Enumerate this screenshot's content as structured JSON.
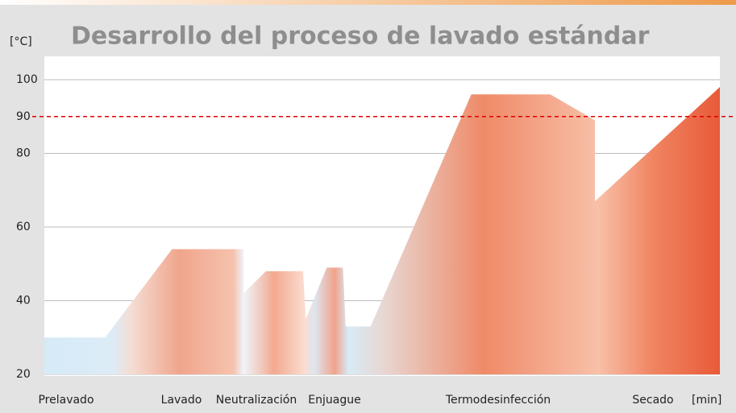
{
  "chart_data": {
    "type": "area",
    "title": "Desarrollo del proceso de lavado estándar",
    "y_label": "[°C]",
    "x_label": "[min]",
    "categories": [
      "Prelavado",
      "Lavado",
      "Neutralización",
      "Enjuague",
      "Termodesinfección",
      "Secado"
    ],
    "xlim": [
      0,
      100
    ],
    "ylim": [
      20,
      100
    ],
    "yticks": [
      20,
      40,
      60,
      80,
      90,
      100
    ],
    "grid": true,
    "reference_line": {
      "value": 90,
      "color": "#e00000"
    },
    "series": [
      {
        "x": [
          0,
          9,
          18.9,
          29.5,
          29.5,
          32.8,
          38.3,
          38.7,
          41.8,
          44.2,
          44.6,
          48.3,
          63.2,
          74.9,
          81.5,
          81.5,
          100
        ],
        "values": [
          30,
          30,
          54,
          54,
          42,
          48,
          48,
          35,
          49,
          49,
          33,
          33,
          96,
          96,
          89,
          67,
          98
        ]
      }
    ]
  }
}
